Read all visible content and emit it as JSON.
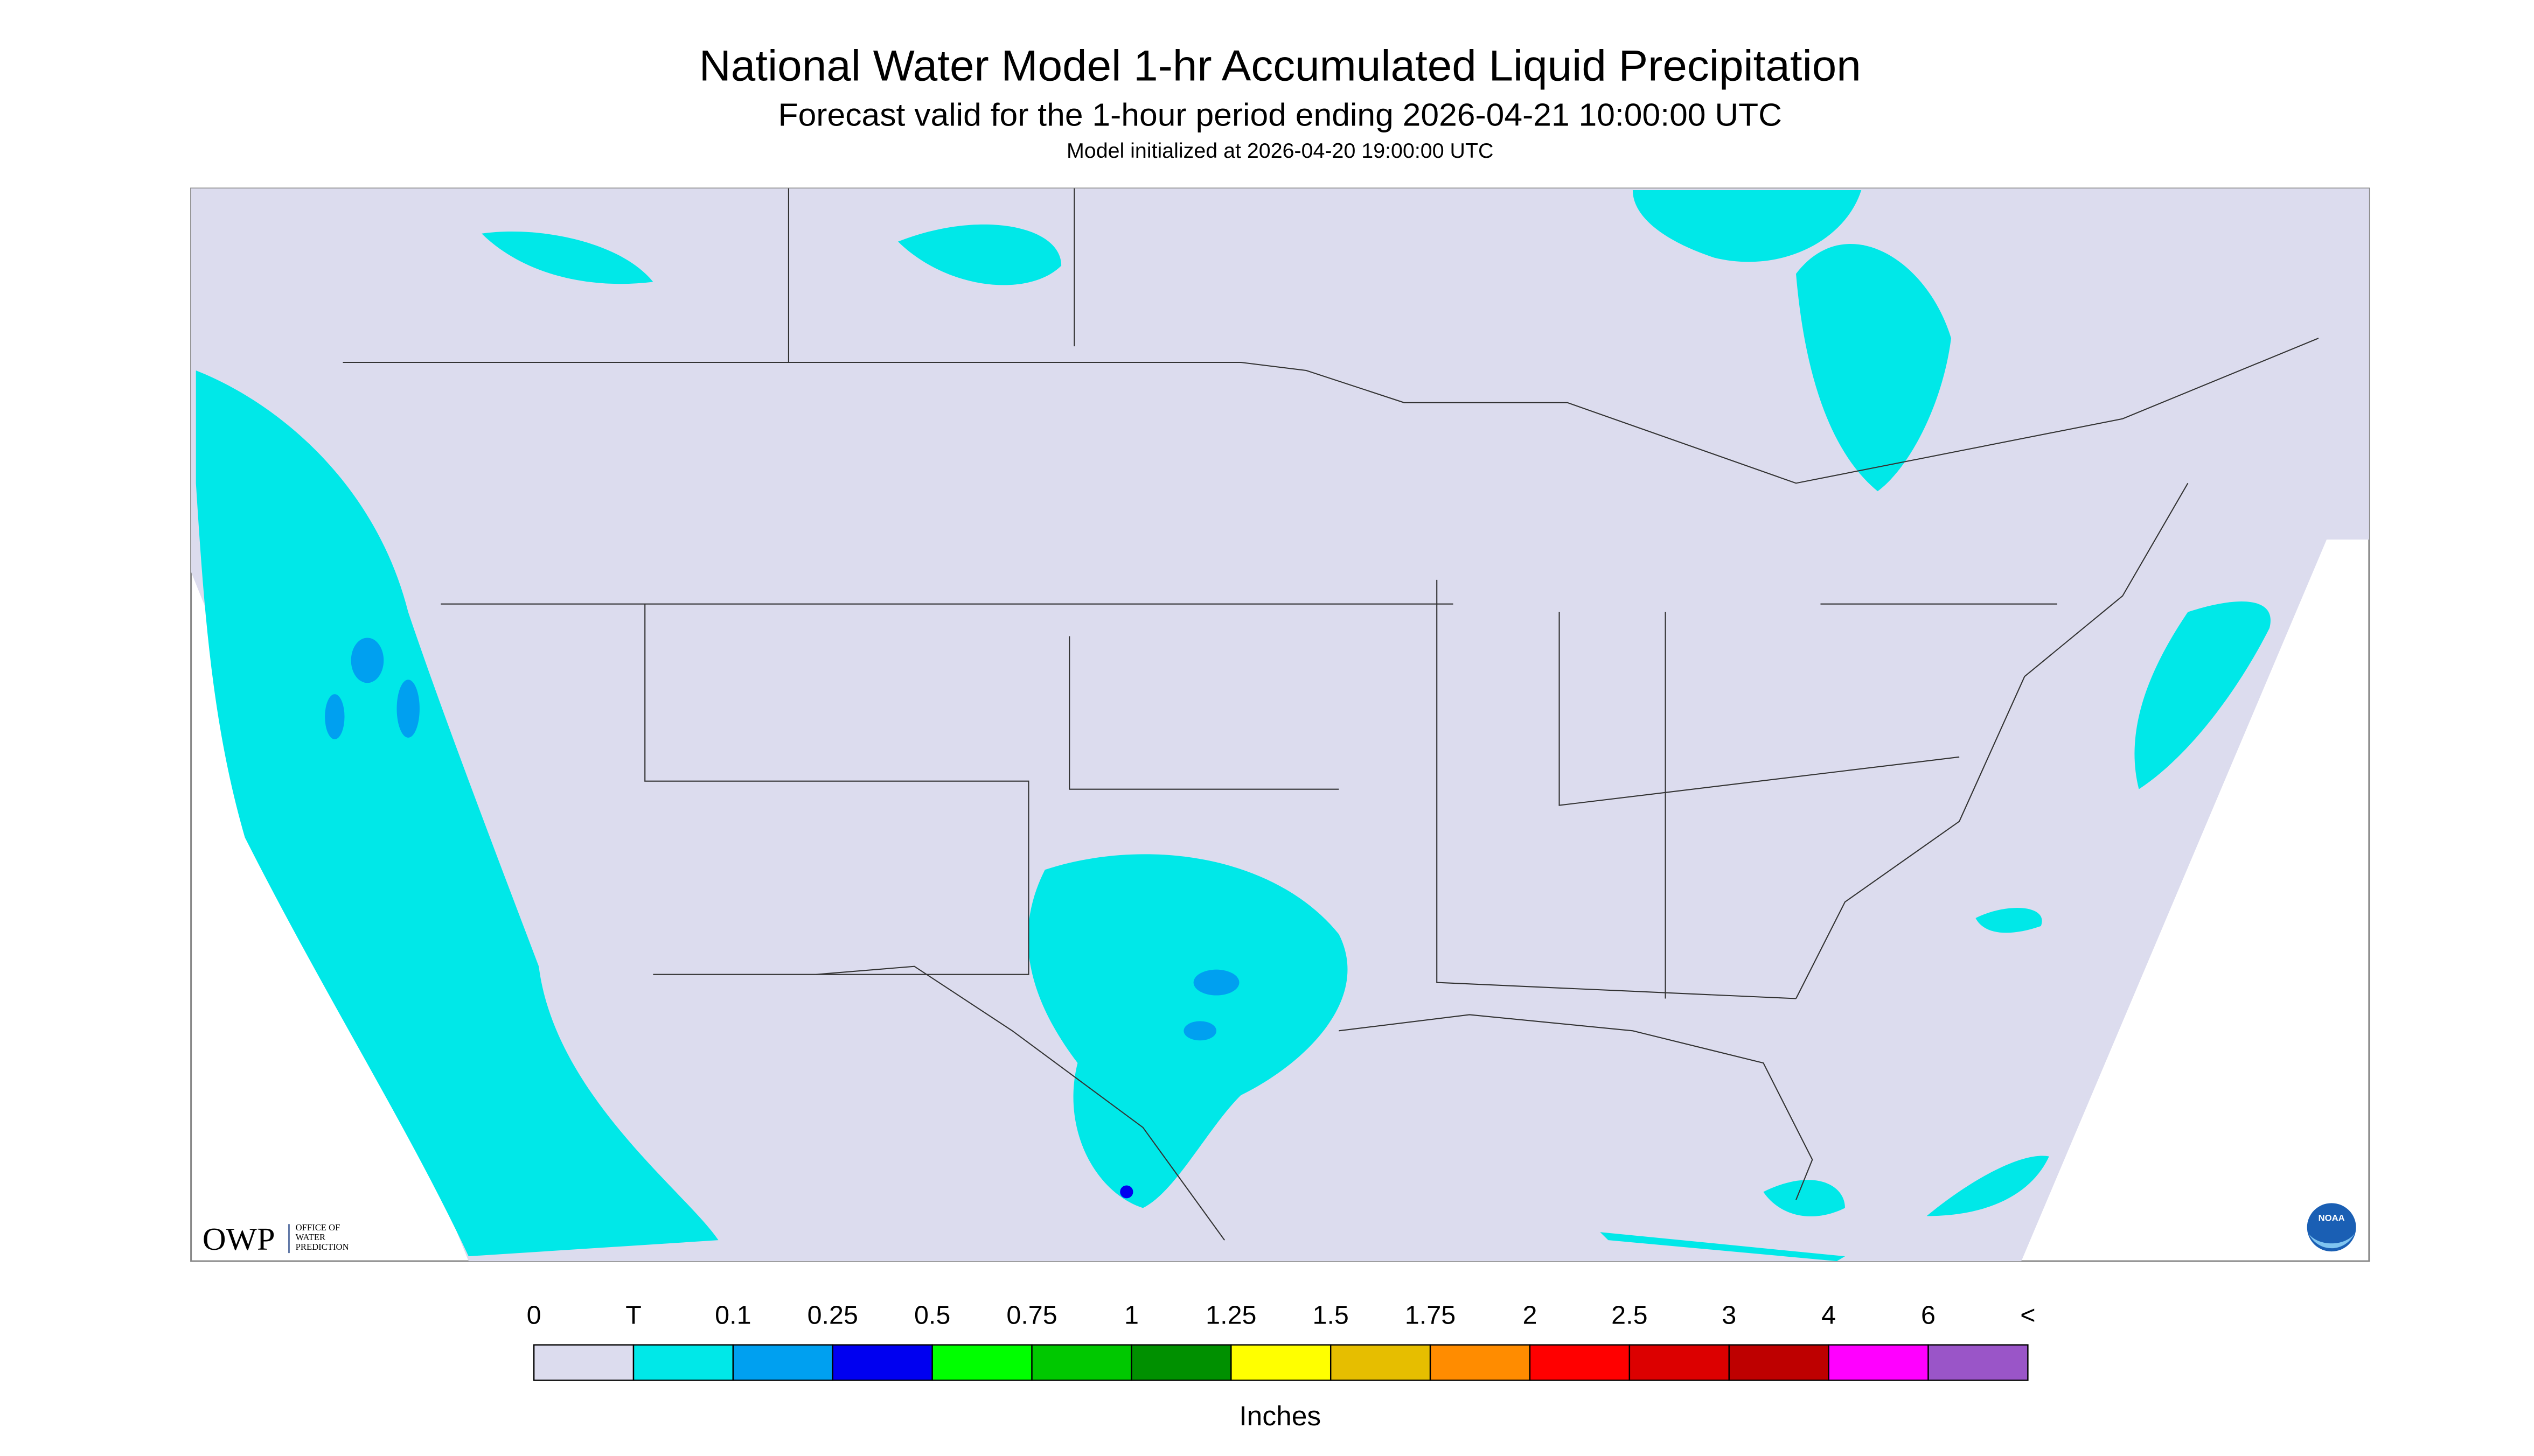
{
  "header": {
    "title": "National Water Model 1-hr Accumulated Liquid Precipitation",
    "subtitle": "Forecast valid for the 1-hour period ending 2026-04-21 10:00:00 UTC",
    "note": "Model initialized at 2026-04-20 19:00:00 UTC"
  },
  "legend": {
    "labels": [
      "0",
      "T",
      "0.1",
      "0.25",
      "0.5",
      "0.75",
      "1",
      "1.25",
      "1.5",
      "1.75",
      "2",
      "2.5",
      "3",
      "4",
      "6",
      "<"
    ],
    "colors": [
      "#dcdcee",
      "#00e8e8",
      "#00a0f0",
      "#0000f0",
      "#00ff00",
      "#00c800",
      "#009000",
      "#ffff00",
      "#e6be00",
      "#ff8c00",
      "#ff0000",
      "#dc0000",
      "#be0000",
      "#ff00ff",
      "#9a55c8"
    ],
    "unit": "Inches"
  },
  "logo": {
    "name": "OWP",
    "lines": [
      "OFFICE OF",
      "WATER",
      "PREDICTION"
    ],
    "agency": "NOAA"
  }
}
